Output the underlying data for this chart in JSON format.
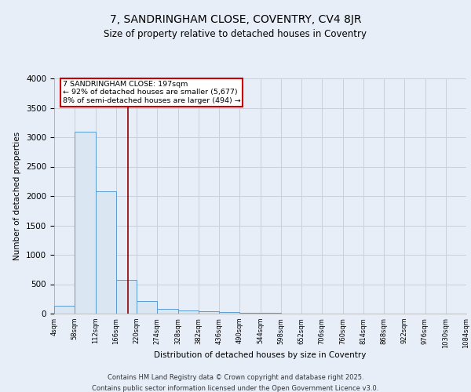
{
  "title1": "7, SANDRINGHAM CLOSE, COVENTRY, CV4 8JR",
  "title2": "Size of property relative to detached houses in Coventry",
  "xlabel": "Distribution of detached houses by size in Coventry",
  "ylabel": "Number of detached properties",
  "bin_edges": [
    4,
    58,
    112,
    166,
    220,
    274,
    328,
    382,
    436,
    490,
    544,
    598,
    652,
    706,
    760,
    814,
    868,
    922,
    976,
    1030,
    1084
  ],
  "bar_heights": [
    130,
    3100,
    2080,
    580,
    220,
    80,
    55,
    40,
    25,
    20,
    8,
    5,
    4,
    3,
    2,
    2,
    1,
    1,
    1,
    1
  ],
  "bar_color": "#dae6f2",
  "bar_edge_color": "#5b9bd5",
  "property_line_x": 197,
  "property_line_color": "#8b0000",
  "annotation_text": "7 SANDRINGHAM CLOSE: 197sqm\n← 92% of detached houses are smaller (5,677)\n8% of semi-detached houses are larger (494) →",
  "annotation_box_color": "#ffffff",
  "annotation_box_edge_color": "#cc0000",
  "background_color": "#e8eef8",
  "plot_bg_color": "#e8eef8",
  "grid_color": "#c8d0dc",
  "ylim": [
    0,
    4000
  ],
  "yticks": [
    0,
    500,
    1000,
    1500,
    2000,
    2500,
    3000,
    3500,
    4000
  ],
  "footer1": "Contains HM Land Registry data © Crown copyright and database right 2025.",
  "footer2": "Contains public sector information licensed under the Open Government Licence v3.0."
}
